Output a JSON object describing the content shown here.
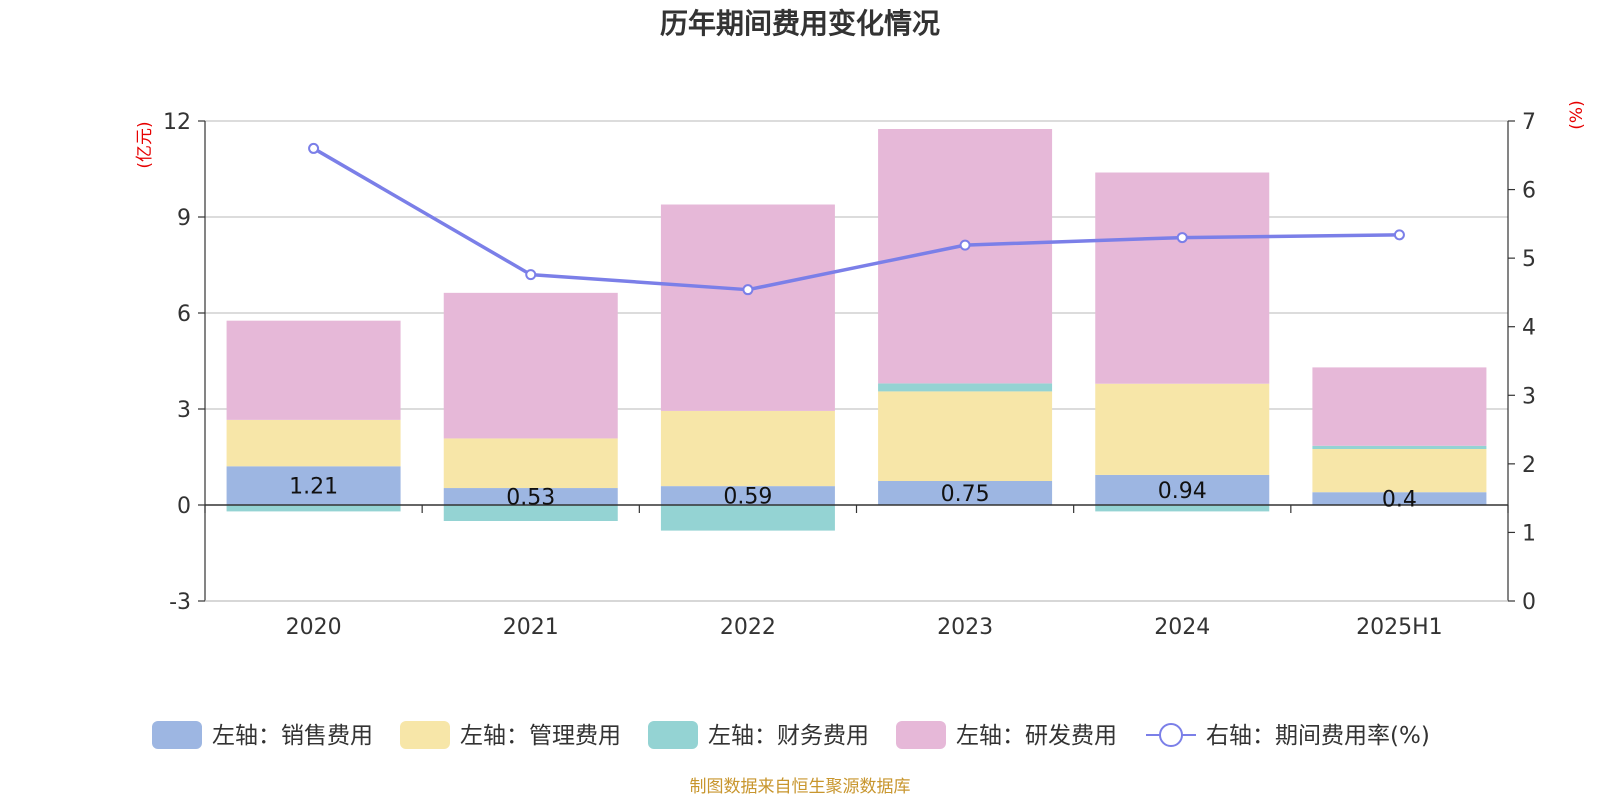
{
  "colors": {
    "sales": "#9db6e2",
    "admin": "#f7e6a8",
    "finance": "#94d3d3",
    "rd": "#e6b8d8",
    "rate": "#7b7fe8",
    "grid": "#c8c8c8",
    "axis": "#333333",
    "unit": "#e60000",
    "source": "#c8962e"
  },
  "source_note": "制图数据来自恒生聚源数据库",
  "chart_data": {
    "type": "bar",
    "title": "历年期间费用变化情况",
    "categories": [
      "2020",
      "2021",
      "2022",
      "2023",
      "2024",
      "2025H1"
    ],
    "left_axis": {
      "unit_label": "(亿元)",
      "ylim": [
        -3,
        12
      ],
      "ticks": [
        -3,
        0,
        3,
        6,
        9,
        12
      ]
    },
    "right_axis": {
      "unit_label": "(%)",
      "ylim": [
        0,
        7
      ],
      "ticks": [
        0,
        1,
        2,
        3,
        4,
        5,
        6,
        7
      ]
    },
    "grid": true,
    "legend_position": "bottom",
    "series": [
      {
        "name": "左轴：销售费用",
        "kind": "bar",
        "axis": "left",
        "color_key": "sales",
        "values": [
          1.21,
          0.53,
          0.59,
          0.75,
          0.94,
          0.4
        ],
        "show_labels": true
      },
      {
        "name": "左轴：管理费用",
        "kind": "bar",
        "axis": "left",
        "color_key": "admin",
        "values": [
          1.45,
          1.55,
          2.35,
          2.8,
          2.85,
          1.35
        ]
      },
      {
        "name": "左轴：财务费用",
        "kind": "bar",
        "axis": "left",
        "color_key": "finance",
        "values": [
          -0.2,
          -0.5,
          -0.8,
          0.25,
          -0.2,
          0.1
        ]
      },
      {
        "name": "左轴：研发费用",
        "kind": "bar",
        "axis": "left",
        "color_key": "rd",
        "values": [
          3.1,
          4.55,
          6.45,
          7.95,
          6.6,
          2.45
        ]
      },
      {
        "name": "右轴：期间费用率(%)",
        "kind": "line",
        "axis": "right",
        "color_key": "rate",
        "values": [
          6.6,
          4.76,
          4.54,
          5.19,
          5.3,
          5.34
        ]
      }
    ]
  }
}
